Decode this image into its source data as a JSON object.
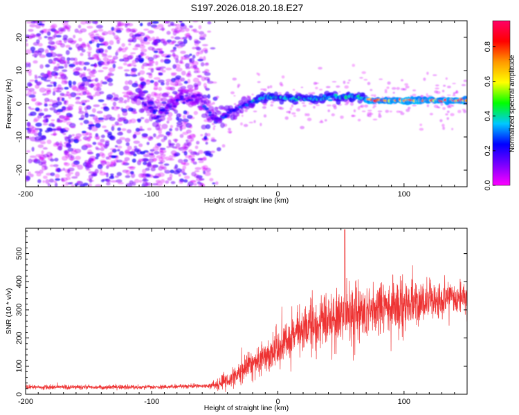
{
  "title": "S197.2026.018.20.18.E27",
  "chart_data": [
    {
      "type": "heatmap",
      "name": "spectrogram",
      "xlabel": "Height of straight line (km)",
      "ylabel": "Frequency (Hz)",
      "xlim": [
        -200,
        150
      ],
      "ylim": [
        -25,
        25
      ],
      "xticks": [
        -200,
        -100,
        0,
        100
      ],
      "xtick_labels": [
        "-200",
        "-100",
        "0",
        "100"
      ],
      "yticks": [
        -20,
        -10,
        0,
        10,
        20
      ],
      "ytick_labels": [
        "-20",
        "-10",
        "0",
        "10",
        "20"
      ],
      "colorbar": {
        "label": "Normalized spectral amplitude",
        "range": [
          0,
          0.95
        ],
        "ticks": [
          0.0,
          0.2,
          0.4,
          0.6,
          0.8
        ],
        "tick_labels": [
          "0.0",
          "0.2",
          "0.4",
          "0.6",
          "0.8"
        ],
        "colormap": [
          "#ff00ff",
          "#7a00ff",
          "#0000ff",
          "#00c8ff",
          "#00ff00",
          "#ffff00",
          "#ff9900",
          "#ff0000",
          "#ff0066"
        ]
      },
      "ridge": [
        {
          "x": -110,
          "y": 2
        },
        {
          "x": -95,
          "y": -4
        },
        {
          "x": -80,
          "y": 1
        },
        {
          "x": -62,
          "y": 2
        },
        {
          "x": -50,
          "y": -5
        },
        {
          "x": -38,
          "y": -3
        },
        {
          "x": -25,
          "y": 0
        },
        {
          "x": -10,
          "y": 2
        },
        {
          "x": 20,
          "y": 1.5
        },
        {
          "x": 45,
          "y": 2
        },
        {
          "x": 65,
          "y": 2
        },
        {
          "x": 75,
          "y": 1
        },
        {
          "x": 150,
          "y": 1
        }
      ]
    },
    {
      "type": "line",
      "name": "snr",
      "xlabel": "Height of straight line (km)",
      "ylabel": "SNR (10 * v/v)",
      "xlim": [
        -200,
        150
      ],
      "ylim": [
        0,
        590
      ],
      "xticks": [
        -200,
        -100,
        0,
        100
      ],
      "xtick_labels": [
        "-200",
        "-100",
        "0",
        "100"
      ],
      "yticks": [
        0,
        100,
        200,
        300,
        400,
        500
      ],
      "ytick_labels": [
        "0",
        "100",
        "200",
        "300",
        "400",
        "500"
      ],
      "color": "#ee3333",
      "trend": [
        {
          "x": -200,
          "y": 25
        },
        {
          "x": -100,
          "y": 25
        },
        {
          "x": -55,
          "y": 30
        },
        {
          "x": -40,
          "y": 45
        },
        {
          "x": -20,
          "y": 110
        },
        {
          "x": 0,
          "y": 160
        },
        {
          "x": 20,
          "y": 230
        },
        {
          "x": 50,
          "y": 280
        },
        {
          "x": 80,
          "y": 300
        },
        {
          "x": 110,
          "y": 320
        },
        {
          "x": 150,
          "y": 345
        }
      ]
    }
  ]
}
